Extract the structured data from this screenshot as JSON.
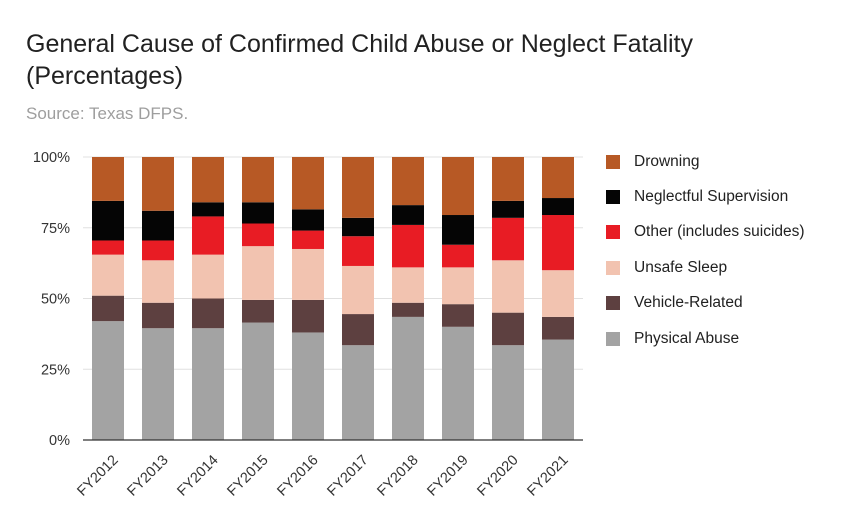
{
  "chart_data": {
    "type": "bar",
    "stacked": true,
    "title": "General Cause of Confirmed Child Abuse or Neglect Fatality (Percentages)",
    "subtitle": "Source: Texas DFPS.",
    "xlabel": "",
    "ylabel": "",
    "ylim": [
      0,
      100
    ],
    "yticks": [
      "0%",
      "25%",
      "50%",
      "75%",
      "100%"
    ],
    "categories": [
      "FY2012",
      "FY2013",
      "FY2014",
      "FY2015",
      "FY2016",
      "FY2017",
      "FY2018",
      "FY2019",
      "FY2020",
      "FY2021"
    ],
    "legend_position": "right",
    "series": [
      {
        "name": "Physical Abuse",
        "color": "#a3a3a3",
        "values": [
          42,
          39.5,
          39.5,
          41.5,
          38,
          33.5,
          43.5,
          40,
          33.5,
          35.5
        ]
      },
      {
        "name": "Vehicle-Related",
        "color": "#5d4040",
        "values": [
          9,
          9,
          10.5,
          8,
          11.5,
          11,
          5,
          8,
          11.5,
          8
        ]
      },
      {
        "name": "Unsafe Sleep",
        "color": "#f2c3b0",
        "values": [
          14.5,
          15,
          15.5,
          19,
          18,
          17,
          12.5,
          13,
          18.5,
          16.5
        ]
      },
      {
        "name": "Other (includes suicides)",
        "color": "#e81c24",
        "values": [
          5,
          7,
          13.5,
          8,
          6.5,
          10.5,
          15,
          8,
          15,
          19.5
        ]
      },
      {
        "name": "Neglectful Supervision",
        "color": "#050505",
        "values": [
          14,
          10.5,
          5,
          7.5,
          7.5,
          6.5,
          7,
          10.5,
          6,
          6
        ]
      },
      {
        "name": "Drowning",
        "color": "#b75925",
        "values": [
          15.5,
          19,
          16,
          16,
          18.5,
          21.5,
          17,
          20.5,
          15.5,
          14.5
        ]
      }
    ]
  }
}
